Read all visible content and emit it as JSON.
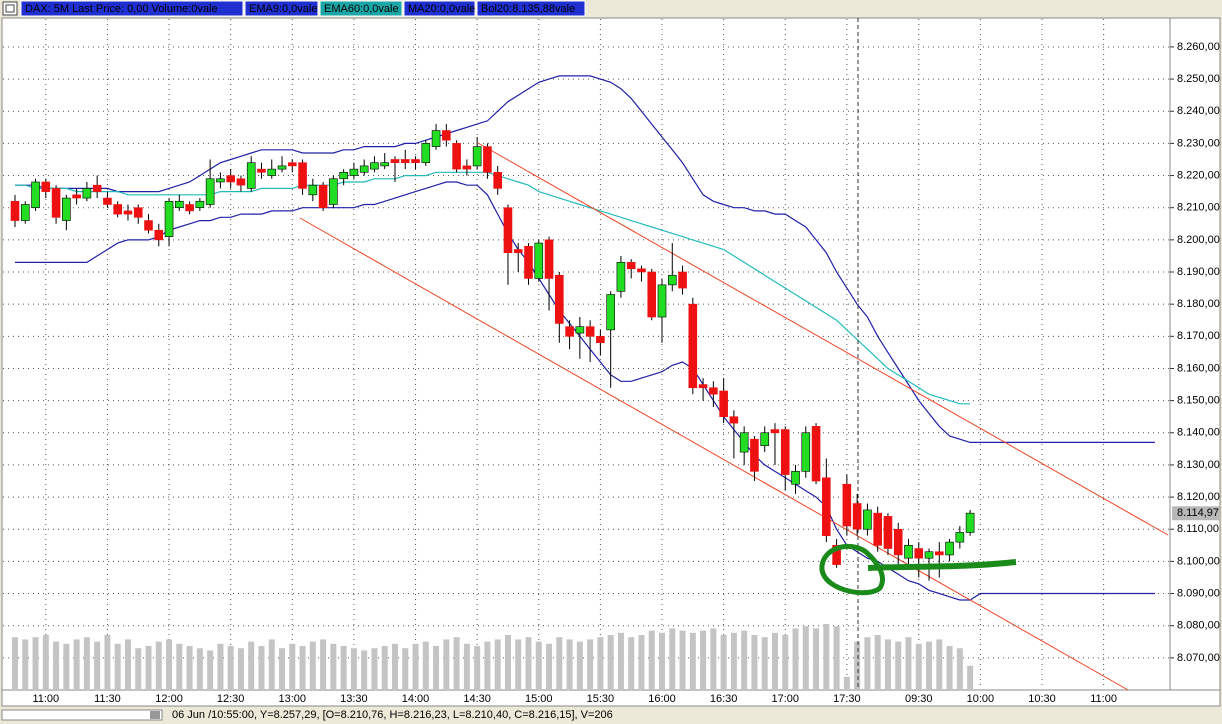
{
  "chart_data": {
    "type": "candlestick",
    "legend": [
      {
        "text": "DAX: 5M Last Price: 0,00 Volume:0vale",
        "color": "#1f2fd0"
      },
      {
        "text": "EMA9:0,0vale",
        "color": "#1f2fd0"
      },
      {
        "text": "EMA60:0,0vale",
        "color": "#1aa6a6"
      },
      {
        "text": "MA20:0,0vale",
        "color": "#1f2fd0"
      },
      {
        "text": "Bol20:8.135,88vale",
        "color": "#1f2fd0"
      }
    ],
    "status": "06 Jun /10:55:00, Y=8.257,29, [O=8.210,76, H=8.216,23, L=8.210,40, C=8.216,15], V=206",
    "last_price": {
      "value": 8114.97,
      "label": "8.114,97"
    },
    "up_color": "#22dd22",
    "down_color": "#ee1111",
    "grid": true,
    "ylim": [
      8060,
      8269
    ],
    "yticks": [
      {
        "value": 8070,
        "label": "8.070,00"
      },
      {
        "value": 8080,
        "label": "8.080,00"
      },
      {
        "value": 8090,
        "label": "8.090,00"
      },
      {
        "value": 8100,
        "label": "8.100,00"
      },
      {
        "value": 8110,
        "label": "8.110,00"
      },
      {
        "value": 8120,
        "label": "8.120,00"
      },
      {
        "value": 8130,
        "label": "8.130,00"
      },
      {
        "value": 8140,
        "label": "8.140,00"
      },
      {
        "value": 8150,
        "label": "8.150,00"
      },
      {
        "value": 8160,
        "label": "8.160,00"
      },
      {
        "value": 8170,
        "label": "8.170,00"
      },
      {
        "value": 8180,
        "label": "8.180,00"
      },
      {
        "value": 8190,
        "label": "8.190,00"
      },
      {
        "value": 8200,
        "label": "8.200,00"
      },
      {
        "value": 8210,
        "label": "8.210,00"
      },
      {
        "value": 8220,
        "label": "8.220,00"
      },
      {
        "value": 8230,
        "label": "8.230,00"
      },
      {
        "value": 8240,
        "label": "8.240,00"
      },
      {
        "value": 8250,
        "label": "8.250,00"
      },
      {
        "value": 8260,
        "label": "8.260,00"
      }
    ],
    "categories": [
      null,
      null,
      null,
      "11:00",
      null,
      null,
      null,
      null,
      null,
      "11:30",
      null,
      null,
      null,
      null,
      null,
      "12:00",
      null,
      null,
      null,
      null,
      null,
      "12:30",
      null,
      null,
      null,
      null,
      null,
      "13:00",
      null,
      null,
      null,
      null,
      null,
      "13:30",
      null,
      null,
      null,
      null,
      null,
      "14:00",
      null,
      null,
      null,
      null,
      null,
      "14:30",
      null,
      null,
      null,
      null,
      null,
      "15:00",
      null,
      null,
      null,
      null,
      null,
      "15:30",
      null,
      null,
      null,
      null,
      null,
      "16:00",
      null,
      null,
      null,
      null,
      null,
      "16:30",
      null,
      null,
      null,
      null,
      null,
      "17:00",
      null,
      null,
      null,
      null,
      null,
      "17:30",
      null,
      null,
      null,
      null,
      null,
      null,
      "09:30",
      null,
      null,
      null,
      null,
      null,
      "10:00",
      null,
      null,
      null,
      null,
      null,
      "10:30",
      null,
      null,
      null,
      null,
      null,
      "11:00",
      null,
      null,
      null,
      null,
      null
    ],
    "open": [
      8212,
      8206,
      8210,
      8218,
      8216,
      8206,
      8214,
      8213,
      8217,
      8213,
      8211,
      8209,
      8210,
      8206,
      8203,
      8201,
      8210,
      8211,
      8210,
      8211,
      8218,
      8220,
      8219,
      8216,
      8222,
      8220,
      8222,
      8224,
      8224,
      8214,
      8217,
      8211,
      8219,
      8220,
      8221,
      8222,
      8223,
      8225,
      8225,
      8225,
      8224,
      8229,
      8234,
      8230,
      8223,
      8223,
      8229,
      8221,
      8210,
      8197,
      8198,
      8188,
      8200,
      8189,
      8173,
      8171,
      8173,
      8170,
      8172,
      8184,
      8193,
      8191,
      8190,
      8176,
      8186,
      8190,
      8180,
      8155,
      8154,
      8153,
      8145,
      8134,
      8138,
      8136,
      8141,
      8141,
      8124,
      8128,
      8142,
      8126,
      8105,
      8124,
      8118,
      8110,
      8115,
      8114,
      8110,
      8101,
      8104,
      8101,
      8103,
      8102,
      8106,
      8109,
      null,
      null,
      null,
      null,
      null,
      null,
      null,
      null,
      null,
      null,
      null,
      null,
      null,
      null,
      null,
      null,
      null,
      null
    ],
    "high": [
      8214,
      8212,
      8219,
      8219,
      8217,
      8214,
      8216,
      8218,
      8220,
      8215,
      8212,
      8211,
      8211,
      8208,
      8205,
      8213,
      8214,
      8212,
      8213,
      8225,
      8221,
      8222,
      8220,
      8226,
      8224,
      8225,
      8226,
      8225,
      8225,
      8219,
      8218,
      8220,
      8222,
      8224,
      8225,
      8226,
      8227,
      8226,
      8228,
      8226,
      8231,
      8236,
      8236,
      8231,
      8225,
      8232,
      8230,
      8223,
      8211,
      8199,
      8199,
      8200,
      8201,
      8190,
      8175,
      8176,
      8175,
      8172,
      8184,
      8195,
      8194,
      8192,
      8191,
      8188,
      8199,
      8192,
      8182,
      8157,
      8156,
      8157,
      8147,
      8142,
      8139,
      8142,
      8143,
      8142,
      8130,
      8142,
      8143,
      8132,
      8107,
      8127,
      8121,
      8118,
      8117,
      8115,
      8112,
      8107,
      8106,
      8104,
      8106,
      8107,
      8111,
      8116,
      null,
      null,
      null,
      null,
      null,
      null,
      null,
      null,
      null,
      null,
      null,
      null,
      null,
      null,
      null,
      null,
      null,
      null
    ],
    "low": [
      8204,
      8205,
      8209,
      8213,
      8205,
      8203,
      8211,
      8212,
      8213,
      8210,
      8207,
      8206,
      8205,
      8202,
      8198,
      8198,
      8209,
      8208,
      8209,
      8210,
      8216,
      8216,
      8215,
      8215,
      8219,
      8219,
      8221,
      8221,
      8214,
      8212,
      8209,
      8210,
      8217,
      8219,
      8220,
      8221,
      8222,
      8218,
      8222,
      8222,
      8223,
      8228,
      8229,
      8221,
      8220,
      8222,
      8219,
      8214,
      8186,
      8190,
      8186,
      8187,
      8178,
      8168,
      8166,
      8163,
      8162,
      8164,
      8154,
      8182,
      8188,
      8187,
      8175,
      8168,
      8184,
      8183,
      8152,
      8150,
      8148,
      8143,
      8132,
      8130,
      8125,
      8134,
      8130,
      8122,
      8121,
      8126,
      8124,
      8106,
      8098,
      8108,
      8108,
      8108,
      8103,
      8102,
      8098,
      8098,
      8095,
      8094,
      8095,
      8100,
      8104,
      8108,
      null,
      null,
      null,
      null,
      null,
      null,
      null,
      null,
      null,
      null,
      null,
      null,
      null,
      null,
      null,
      null,
      null,
      null
    ],
    "close": [
      8206,
      8211,
      8218,
      8215,
      8207,
      8213,
      8213,
      8216,
      8215,
      8211,
      8208,
      8208,
      8207,
      8203,
      8200,
      8212,
      8212,
      8209,
      8212,
      8219,
      8219,
      8218,
      8217,
      8224,
      8221,
      8222,
      8223,
      8223,
      8216,
      8217,
      8210,
      8219,
      8221,
      8222,
      8223,
      8224,
      8224,
      8224,
      8224,
      8224,
      8230,
      8234,
      8231,
      8222,
      8222,
      8229,
      8221,
      8216,
      8196,
      8196,
      8188,
      8199,
      8188,
      8174,
      8170,
      8173,
      8170,
      8168,
      8183,
      8193,
      8191,
      8190,
      8176,
      8186,
      8189,
      8185,
      8154,
      8154,
      8152,
      8145,
      8143,
      8140,
      8128,
      8140,
      8140,
      8127,
      8128,
      8140,
      8125,
      8108,
      8099,
      8111,
      8110,
      8116,
      8105,
      8104,
      8102,
      8105,
      8101,
      8103,
      8102,
      8106,
      8109,
      8115,
      null,
      null,
      null,
      null,
      null,
      null,
      null,
      null,
      null,
      null,
      null,
      null,
      null,
      null,
      null,
      null,
      null,
      null
    ],
    "volume": {
      "color": "#c4c4c4",
      "values": [
        48,
        46,
        48,
        50,
        44,
        42,
        46,
        48,
        44,
        50,
        42,
        46,
        38,
        40,
        44,
        46,
        42,
        40,
        38,
        36,
        42,
        40,
        38,
        44,
        40,
        46,
        38,
        42,
        40,
        44,
        46,
        42,
        40,
        38,
        36,
        38,
        40,
        42,
        38,
        42,
        44,
        40,
        46,
        48,
        42,
        40,
        44,
        46,
        50,
        46,
        48,
        44,
        42,
        48,
        46,
        44,
        46,
        48,
        50,
        52,
        48,
        50,
        54,
        52,
        56,
        54,
        52,
        54,
        56,
        50,
        52,
        54,
        50,
        48,
        52,
        50,
        56,
        58,
        56,
        60,
        58,
        12,
        44,
        48,
        50,
        46,
        44,
        48,
        42,
        44,
        46,
        40,
        38,
        22,
        null,
        null,
        null,
        null,
        null,
        null,
        null,
        null,
        null,
        null,
        null,
        null,
        null,
        null,
        null,
        null,
        null,
        null
      ]
    },
    "series": [
      {
        "color": "#2020a8",
        "values": [
          8217,
          8217,
          8217,
          8216,
          8216,
          8216,
          8216,
          8216,
          8216,
          8216,
          8215,
          8215,
          8215,
          8215,
          8215,
          8216,
          8217,
          8218,
          8220,
          8222,
          8224,
          8225,
          8226,
          8227,
          8228,
          8228,
          8228,
          8228,
          8227,
          8227,
          8227,
          8227,
          8228,
          8228,
          8229,
          8229,
          8229,
          8229,
          8230,
          8230,
          8231,
          8232,
          8233,
          8234,
          8235,
          8236,
          8237,
          8240,
          8243,
          8245,
          8247,
          8249,
          8250,
          8251,
          8251,
          8251,
          8251,
          8250,
          8249,
          8247,
          8244,
          8240,
          8236,
          8232,
          8228,
          8224,
          8219,
          8214,
          8212,
          8211,
          8210,
          8210,
          8209,
          8209,
          8208,
          8208,
          8206,
          8204,
          8200,
          8196,
          8190,
          8185,
          8180,
          8176,
          8170,
          8165,
          8160,
          8155,
          8150,
          8146,
          8142,
          8139,
          8138,
          8137,
          8137,
          8137,
          8137,
          8137,
          8137,
          8137,
          8137,
          8137,
          8137,
          8137,
          8137,
          8137,
          8137,
          8137,
          8137,
          8137,
          8137,
          8137
        ]
      },
      {
        "color": "#2020a8",
        "values": [
          8193,
          8193,
          8193,
          8193,
          8193,
          8193,
          8193,
          8193,
          8195,
          8197,
          8199,
          8200,
          8200,
          8200,
          8201,
          8203,
          8204,
          8205,
          8206,
          8206,
          8207,
          8207,
          8208,
          8208,
          8208,
          8209,
          8209,
          8209,
          8210,
          8210,
          8210,
          8210,
          8210,
          8210,
          8211,
          8211,
          8212,
          8213,
          8214,
          8215,
          8216,
          8217,
          8218,
          8218,
          8217,
          8217,
          8214,
          8208,
          8202,
          8197,
          8193,
          8188,
          8183,
          8178,
          8174,
          8170,
          8166,
          8162,
          8158,
          8156,
          8156,
          8157,
          8158,
          8159,
          8161,
          8162,
          8160,
          8155,
          8150,
          8145,
          8141,
          8137,
          8133,
          8130,
          8128,
          8126,
          8124,
          8122,
          8120,
          8117,
          8110,
          8105,
          8103,
          8101,
          8100,
          8098,
          8096,
          8094,
          8093,
          8091,
          8090,
          8089,
          8088,
          8088,
          8090,
          8090,
          8090,
          8090,
          8090,
          8090,
          8090,
          8090,
          8090,
          8090,
          8090,
          8090,
          8090,
          8090,
          8090,
          8090,
          8090,
          8090
        ]
      },
      {
        "color": "#22bbbb",
        "values": [
          8217,
          8217,
          8216,
          8216,
          8216,
          8216,
          8215,
          8215,
          8215,
          8215,
          8215,
          8214,
          8214,
          8214,
          8214,
          8214,
          8214,
          8214,
          8214,
          8214,
          8215,
          8215,
          8215,
          8215,
          8216,
          8216,
          8216,
          8216,
          8217,
          8217,
          8217,
          8217,
          8218,
          8218,
          8218,
          8219,
          8219,
          8219,
          8220,
          8220,
          8220,
          8221,
          8221,
          8221,
          8221,
          8221,
          8221,
          8220,
          8219,
          8218,
          8217,
          8215,
          8214,
          8213,
          8212,
          8211,
          8210,
          8209,
          8208,
          8207,
          8206,
          8205,
          8204,
          8203,
          8202,
          8201,
          8200,
          8199,
          8198,
          8197,
          8195,
          8193,
          8191,
          8189,
          8187,
          8185,
          8183,
          8181,
          8179,
          8177,
          8175,
          8172,
          8169,
          8166,
          8163,
          8160,
          8158,
          8156,
          8154,
          8152,
          8151,
          8150,
          8149,
          8149,
          null,
          null,
          null,
          null,
          null,
          null,
          null,
          null,
          null,
          null,
          null,
          null,
          null,
          null,
          null,
          null,
          null,
          null
        ]
      }
    ]
  }
}
